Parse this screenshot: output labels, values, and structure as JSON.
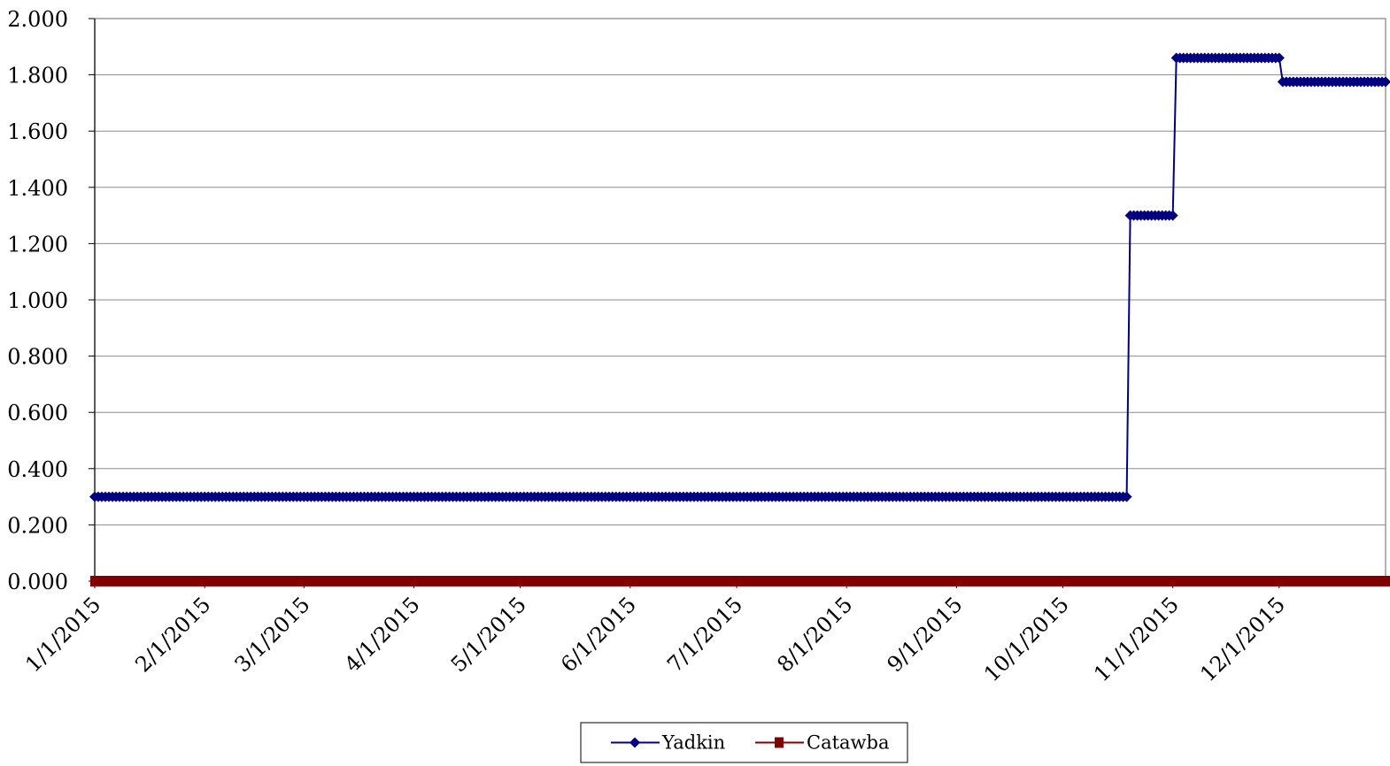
{
  "chart_data": {
    "type": "line",
    "title": "",
    "xlabel": "",
    "ylabel": "",
    "x_axis": {
      "type": "date",
      "range": [
        "2015-01-01",
        "2015-12-31"
      ],
      "tick_dates": [
        "2015-01-01",
        "2015-02-01",
        "2015-03-01",
        "2015-04-01",
        "2015-05-01",
        "2015-06-01",
        "2015-07-01",
        "2015-08-01",
        "2015-09-01",
        "2015-10-01",
        "2015-11-01",
        "2015-12-01"
      ],
      "tick_labels": [
        "1/1/2015",
        "2/1/2015",
        "3/1/2015",
        "4/1/2015",
        "5/1/2015",
        "6/1/2015",
        "7/1/2015",
        "8/1/2015",
        "9/1/2015",
        "10/1/2015",
        "11/1/2015",
        "12/1/2015"
      ],
      "label_rotation_deg": -45
    },
    "y_axis": {
      "range": [
        0,
        2
      ],
      "tick_values": [
        0,
        0.2,
        0.4,
        0.6,
        0.8,
        1.0,
        1.2,
        1.4,
        1.6,
        1.8,
        2.0
      ],
      "tick_labels": [
        "0.000",
        "0.200",
        "0.400",
        "0.600",
        "0.800",
        "1.000",
        "1.200",
        "1.400",
        "1.600",
        "1.800",
        "2.000"
      ]
    },
    "grid": {
      "horizontal": true,
      "vertical": false
    },
    "legend": {
      "position": "bottom-center",
      "entries": [
        "Yadkin",
        "Catawba"
      ]
    },
    "series": [
      {
        "name": "Yadkin",
        "color": "#000080",
        "marker": "diamond",
        "frequency": "daily",
        "steps": [
          {
            "start": "2015-01-01",
            "end": "2015-10-19",
            "value": 0.3
          },
          {
            "start": "2015-10-20",
            "end": "2015-11-01",
            "value": 1.3
          },
          {
            "start": "2015-11-02",
            "end": "2015-12-01",
            "value": 1.86
          },
          {
            "start": "2015-12-02",
            "end": "2015-12-31",
            "value": 1.775
          }
        ]
      },
      {
        "name": "Catawba",
        "color": "#800000",
        "marker": "square",
        "frequency": "daily",
        "steps": [
          {
            "start": "2015-01-01",
            "end": "2015-12-31",
            "value": 0.0
          }
        ]
      }
    ]
  }
}
